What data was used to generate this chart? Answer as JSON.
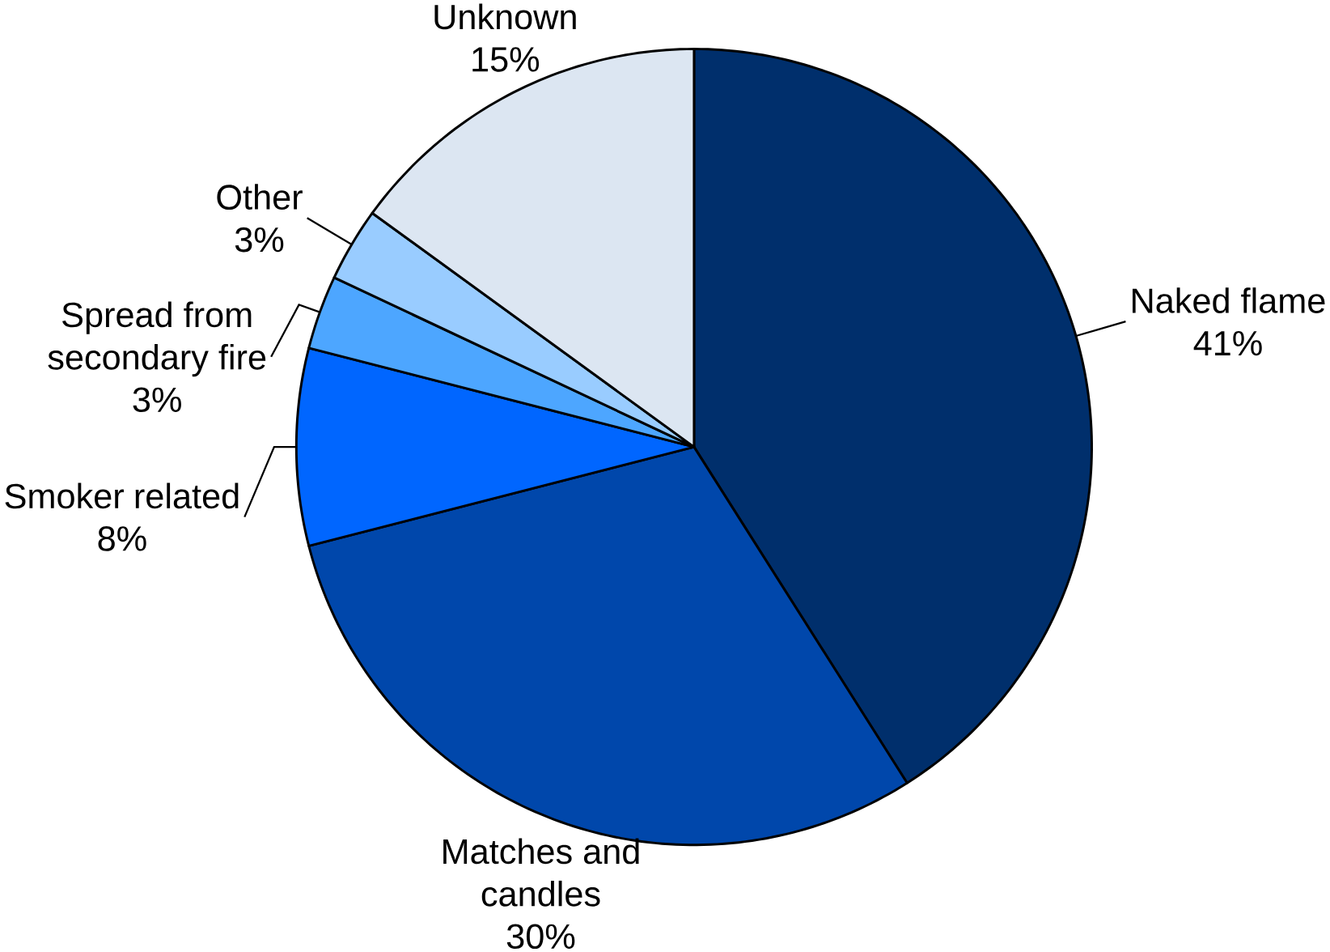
{
  "chart_data": {
    "type": "pie",
    "categories": [
      "Naked flame",
      "Matches and candles",
      "Smoker related",
      "Spread from secondary fire",
      "Other",
      "Unknown"
    ],
    "values": [
      41,
      30,
      8,
      3,
      3,
      15
    ],
    "value_labels": [
      "41%",
      "30%",
      "8%",
      "3%",
      "3%",
      "15%"
    ],
    "colors": [
      "#002f6c",
      "#0047ab",
      "#0066ff",
      "#4da6ff",
      "#99ccff",
      "#dce6f2"
    ]
  }
}
